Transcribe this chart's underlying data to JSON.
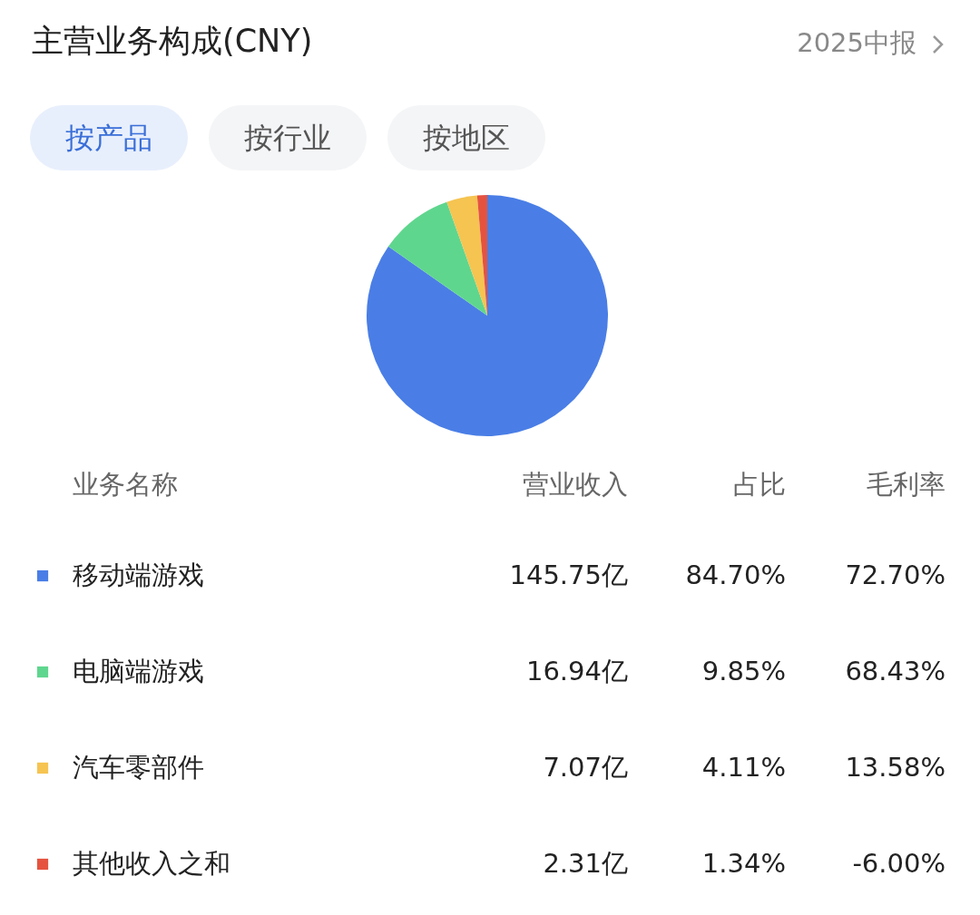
{
  "chart_data": {
    "type": "pie",
    "title": "主营业务构成(CNY)",
    "categories": [
      "移动端游戏",
      "电脑端游戏",
      "汽车零部件",
      "其他收入之和"
    ],
    "values": [
      145.75,
      16.94,
      7.07,
      2.31
    ],
    "colors": [
      "#4a7ee6",
      "#5fd68e",
      "#f5c451",
      "#e5533f"
    ],
    "legend": "bottom",
    "value_labels": [
      "145.75亿",
      "16.94亿",
      "7.07亿",
      "2.31亿"
    ],
    "annotations": [
      "2025中报",
      "按产品",
      "按行业",
      "按地区",
      "业务名称",
      "营业收入",
      "占比",
      "毛利率",
      "84.70%",
      "72.70%",
      "9.85%",
      "68.43%",
      "4.11%",
      "13.58%",
      "1.34%",
      "-6.00%"
    ]
  }
}
